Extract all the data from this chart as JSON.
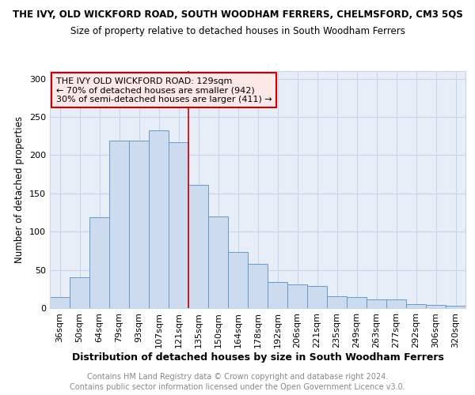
{
  "title": "THE IVY, OLD WICKFORD ROAD, SOUTH WOODHAM FERRERS, CHELMSFORD, CM3 5QS",
  "subtitle": "Size of property relative to detached houses in South Woodham Ferrers",
  "xlabel": "Distribution of detached houses by size in South Woodham Ferrers",
  "ylabel": "Number of detached properties",
  "categories": [
    "36sqm",
    "50sqm",
    "64sqm",
    "79sqm",
    "93sqm",
    "107sqm",
    "121sqm",
    "135sqm",
    "150sqm",
    "164sqm",
    "178sqm",
    "192sqm",
    "206sqm",
    "221sqm",
    "235sqm",
    "249sqm",
    "263sqm",
    "277sqm",
    "292sqm",
    "306sqm",
    "320sqm"
  ],
  "values": [
    14,
    40,
    119,
    219,
    219,
    233,
    217,
    161,
    120,
    73,
    58,
    34,
    31,
    29,
    15,
    14,
    11,
    11,
    5,
    4,
    3
  ],
  "bar_color": "#ccdcee",
  "bar_edge_color": "#6699cc",
  "bar_edge_width": 0.7,
  "grid_color": "#c8d4e8",
  "background_color": "#e8eef8",
  "red_line_x": 6.5,
  "annotation_line1": "THE IVY OLD WICKFORD ROAD: 129sqm",
  "annotation_line2": "← 70% of detached houses are smaller (942)",
  "annotation_line3": "30% of semi-detached houses are larger (411) →",
  "annotation_box_facecolor": "#fde8e8",
  "annotation_box_edgecolor": "#cc0000",
  "footer_line1": "Contains HM Land Registry data © Crown copyright and database right 2024.",
  "footer_line2": "Contains public sector information licensed under the Open Government Licence v3.0.",
  "ylim": [
    0,
    310
  ],
  "yticks": [
    0,
    50,
    100,
    150,
    200,
    250,
    300
  ],
  "title_fontsize": 8.5,
  "subtitle_fontsize": 8.5,
  "xlabel_fontsize": 9,
  "ylabel_fontsize": 8.5,
  "tick_fontsize": 8,
  "annot_fontsize": 8,
  "footer_fontsize": 7,
  "footer_color": "#888888"
}
